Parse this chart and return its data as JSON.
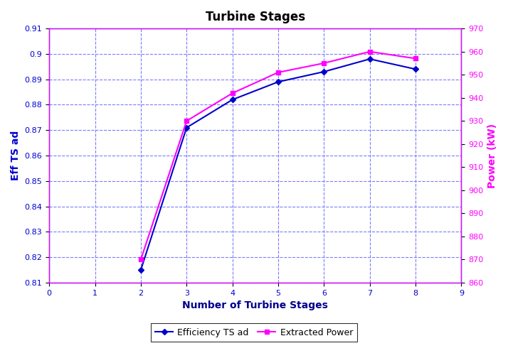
{
  "title": "Turbine Stages",
  "xlabel": "Number of Turbine Stages",
  "ylabel_left": "Eff TS ad",
  "ylabel_right": "Power (kW)",
  "x": [
    2,
    3,
    4,
    5,
    6,
    7,
    8
  ],
  "efficiency": [
    0.815,
    0.871,
    0.882,
    0.889,
    0.893,
    0.898,
    0.894
  ],
  "power": [
    870,
    930,
    942,
    951,
    955,
    960,
    957
  ],
  "xlim": [
    0,
    9
  ],
  "ylim_left": [
    0.81,
    0.91
  ],
  "ylim_right": [
    860,
    970
  ],
  "yticks_left": [
    0.81,
    0.82,
    0.83,
    0.84,
    0.85,
    0.86,
    0.87,
    0.88,
    0.89,
    0.9,
    0.91
  ],
  "yticks_right": [
    860,
    870,
    880,
    890,
    900,
    910,
    920,
    930,
    940,
    950,
    960,
    970
  ],
  "xticks": [
    0,
    1,
    2,
    3,
    4,
    5,
    6,
    7,
    8,
    9
  ],
  "color_efficiency": "#0000CD",
  "color_power": "#FF00FF",
  "color_grid": "#7B7BFF",
  "legend_labels": [
    "Efficiency TS ad",
    "Extracted Power"
  ],
  "background_color": "#FFFFFF",
  "plot_bg_color": "#FFFFFF",
  "title_fontsize": 12,
  "axis_label_fontsize": 10,
  "tick_fontsize": 8,
  "legend_fontsize": 9
}
